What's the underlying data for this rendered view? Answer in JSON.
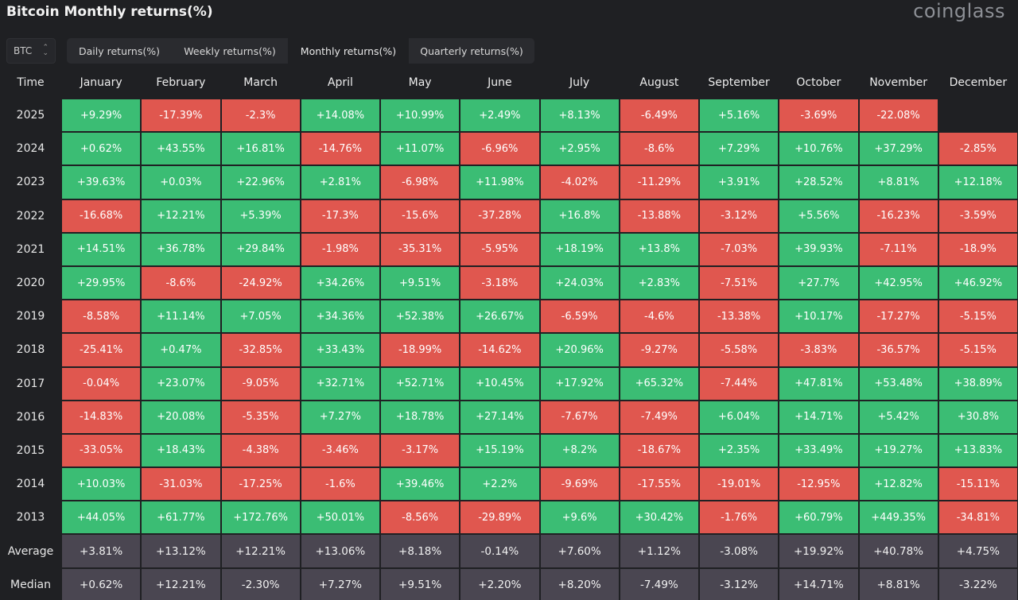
{
  "title": "Bitcoin Monthly returns(%)",
  "brand": "coinglass",
  "asset_select": {
    "value": "BTC",
    "icon": "chevron-updown-icon"
  },
  "tabs": [
    {
      "label": "Daily returns(%)",
      "active": false
    },
    {
      "label": "Weekly returns(%)",
      "active": false
    },
    {
      "label": "Monthly returns(%)",
      "active": true
    },
    {
      "label": "Quarterly returns(%)",
      "active": false
    }
  ],
  "colors": {
    "positive": "#3bbd74",
    "negative": "#e0574f",
    "stat_row": "#4a4651",
    "background": "#1f2023"
  },
  "table": {
    "corner_label": "Time",
    "months": [
      "January",
      "February",
      "March",
      "April",
      "May",
      "June",
      "July",
      "August",
      "September",
      "October",
      "November",
      "December"
    ],
    "rows": [
      {
        "year": "2025",
        "values": [
          "+9.29%",
          "-17.39%",
          "-2.3%",
          "+14.08%",
          "+10.99%",
          "+2.49%",
          "+8.13%",
          "-6.49%",
          "+5.16%",
          "-3.69%",
          "-22.08%",
          ""
        ]
      },
      {
        "year": "2024",
        "values": [
          "+0.62%",
          "+43.55%",
          "+16.81%",
          "-14.76%",
          "+11.07%",
          "-6.96%",
          "+2.95%",
          "-8.6%",
          "+7.29%",
          "+10.76%",
          "+37.29%",
          "-2.85%"
        ]
      },
      {
        "year": "2023",
        "values": [
          "+39.63%",
          "+0.03%",
          "+22.96%",
          "+2.81%",
          "-6.98%",
          "+11.98%",
          "-4.02%",
          "-11.29%",
          "+3.91%",
          "+28.52%",
          "+8.81%",
          "+12.18%"
        ]
      },
      {
        "year": "2022",
        "values": [
          "-16.68%",
          "+12.21%",
          "+5.39%",
          "-17.3%",
          "-15.6%",
          "-37.28%",
          "+16.8%",
          "-13.88%",
          "-3.12%",
          "+5.56%",
          "-16.23%",
          "-3.59%"
        ]
      },
      {
        "year": "2021",
        "values": [
          "+14.51%",
          "+36.78%",
          "+29.84%",
          "-1.98%",
          "-35.31%",
          "-5.95%",
          "+18.19%",
          "+13.8%",
          "-7.03%",
          "+39.93%",
          "-7.11%",
          "-18.9%"
        ]
      },
      {
        "year": "2020",
        "values": [
          "+29.95%",
          "-8.6%",
          "-24.92%",
          "+34.26%",
          "+9.51%",
          "-3.18%",
          "+24.03%",
          "+2.83%",
          "-7.51%",
          "+27.7%",
          "+42.95%",
          "+46.92%"
        ]
      },
      {
        "year": "2019",
        "values": [
          "-8.58%",
          "+11.14%",
          "+7.05%",
          "+34.36%",
          "+52.38%",
          "+26.67%",
          "-6.59%",
          "-4.6%",
          "-13.38%",
          "+10.17%",
          "-17.27%",
          "-5.15%"
        ]
      },
      {
        "year": "2018",
        "values": [
          "-25.41%",
          "+0.47%",
          "-32.85%",
          "+33.43%",
          "-18.99%",
          "-14.62%",
          "+20.96%",
          "-9.27%",
          "-5.58%",
          "-3.83%",
          "-36.57%",
          "-5.15%"
        ]
      },
      {
        "year": "2017",
        "values": [
          "-0.04%",
          "+23.07%",
          "-9.05%",
          "+32.71%",
          "+52.71%",
          "+10.45%",
          "+17.92%",
          "+65.32%",
          "-7.44%",
          "+47.81%",
          "+53.48%",
          "+38.89%"
        ]
      },
      {
        "year": "2016",
        "values": [
          "-14.83%",
          "+20.08%",
          "-5.35%",
          "+7.27%",
          "+18.78%",
          "+27.14%",
          "-7.67%",
          "-7.49%",
          "+6.04%",
          "+14.71%",
          "+5.42%",
          "+30.8%"
        ]
      },
      {
        "year": "2015",
        "values": [
          "-33.05%",
          "+18.43%",
          "-4.38%",
          "-3.46%",
          "-3.17%",
          "+15.19%",
          "+8.2%",
          "-18.67%",
          "+2.35%",
          "+33.49%",
          "+19.27%",
          "+13.83%"
        ]
      },
      {
        "year": "2014",
        "values": [
          "+10.03%",
          "-31.03%",
          "-17.25%",
          "-1.6%",
          "+39.46%",
          "+2.2%",
          "-9.69%",
          "-17.55%",
          "-19.01%",
          "-12.95%",
          "+12.82%",
          "-15.11%"
        ]
      },
      {
        "year": "2013",
        "values": [
          "+44.05%",
          "+61.77%",
          "+172.76%",
          "+50.01%",
          "-8.56%",
          "-29.89%",
          "+9.6%",
          "+30.42%",
          "-1.76%",
          "+60.79%",
          "+449.35%",
          "-34.81%"
        ]
      }
    ],
    "stats": [
      {
        "label": "Average",
        "values": [
          "+3.81%",
          "+13.12%",
          "+12.21%",
          "+13.06%",
          "+8.18%",
          "-0.14%",
          "+7.60%",
          "+1.12%",
          "-3.08%",
          "+19.92%",
          "+40.78%",
          "+4.75%"
        ]
      },
      {
        "label": "Median",
        "values": [
          "+0.62%",
          "+12.21%",
          "-2.30%",
          "+7.27%",
          "+9.51%",
          "+2.20%",
          "+8.20%",
          "-7.49%",
          "-3.12%",
          "+14.71%",
          "+8.81%",
          "-3.22%"
        ]
      }
    ]
  }
}
